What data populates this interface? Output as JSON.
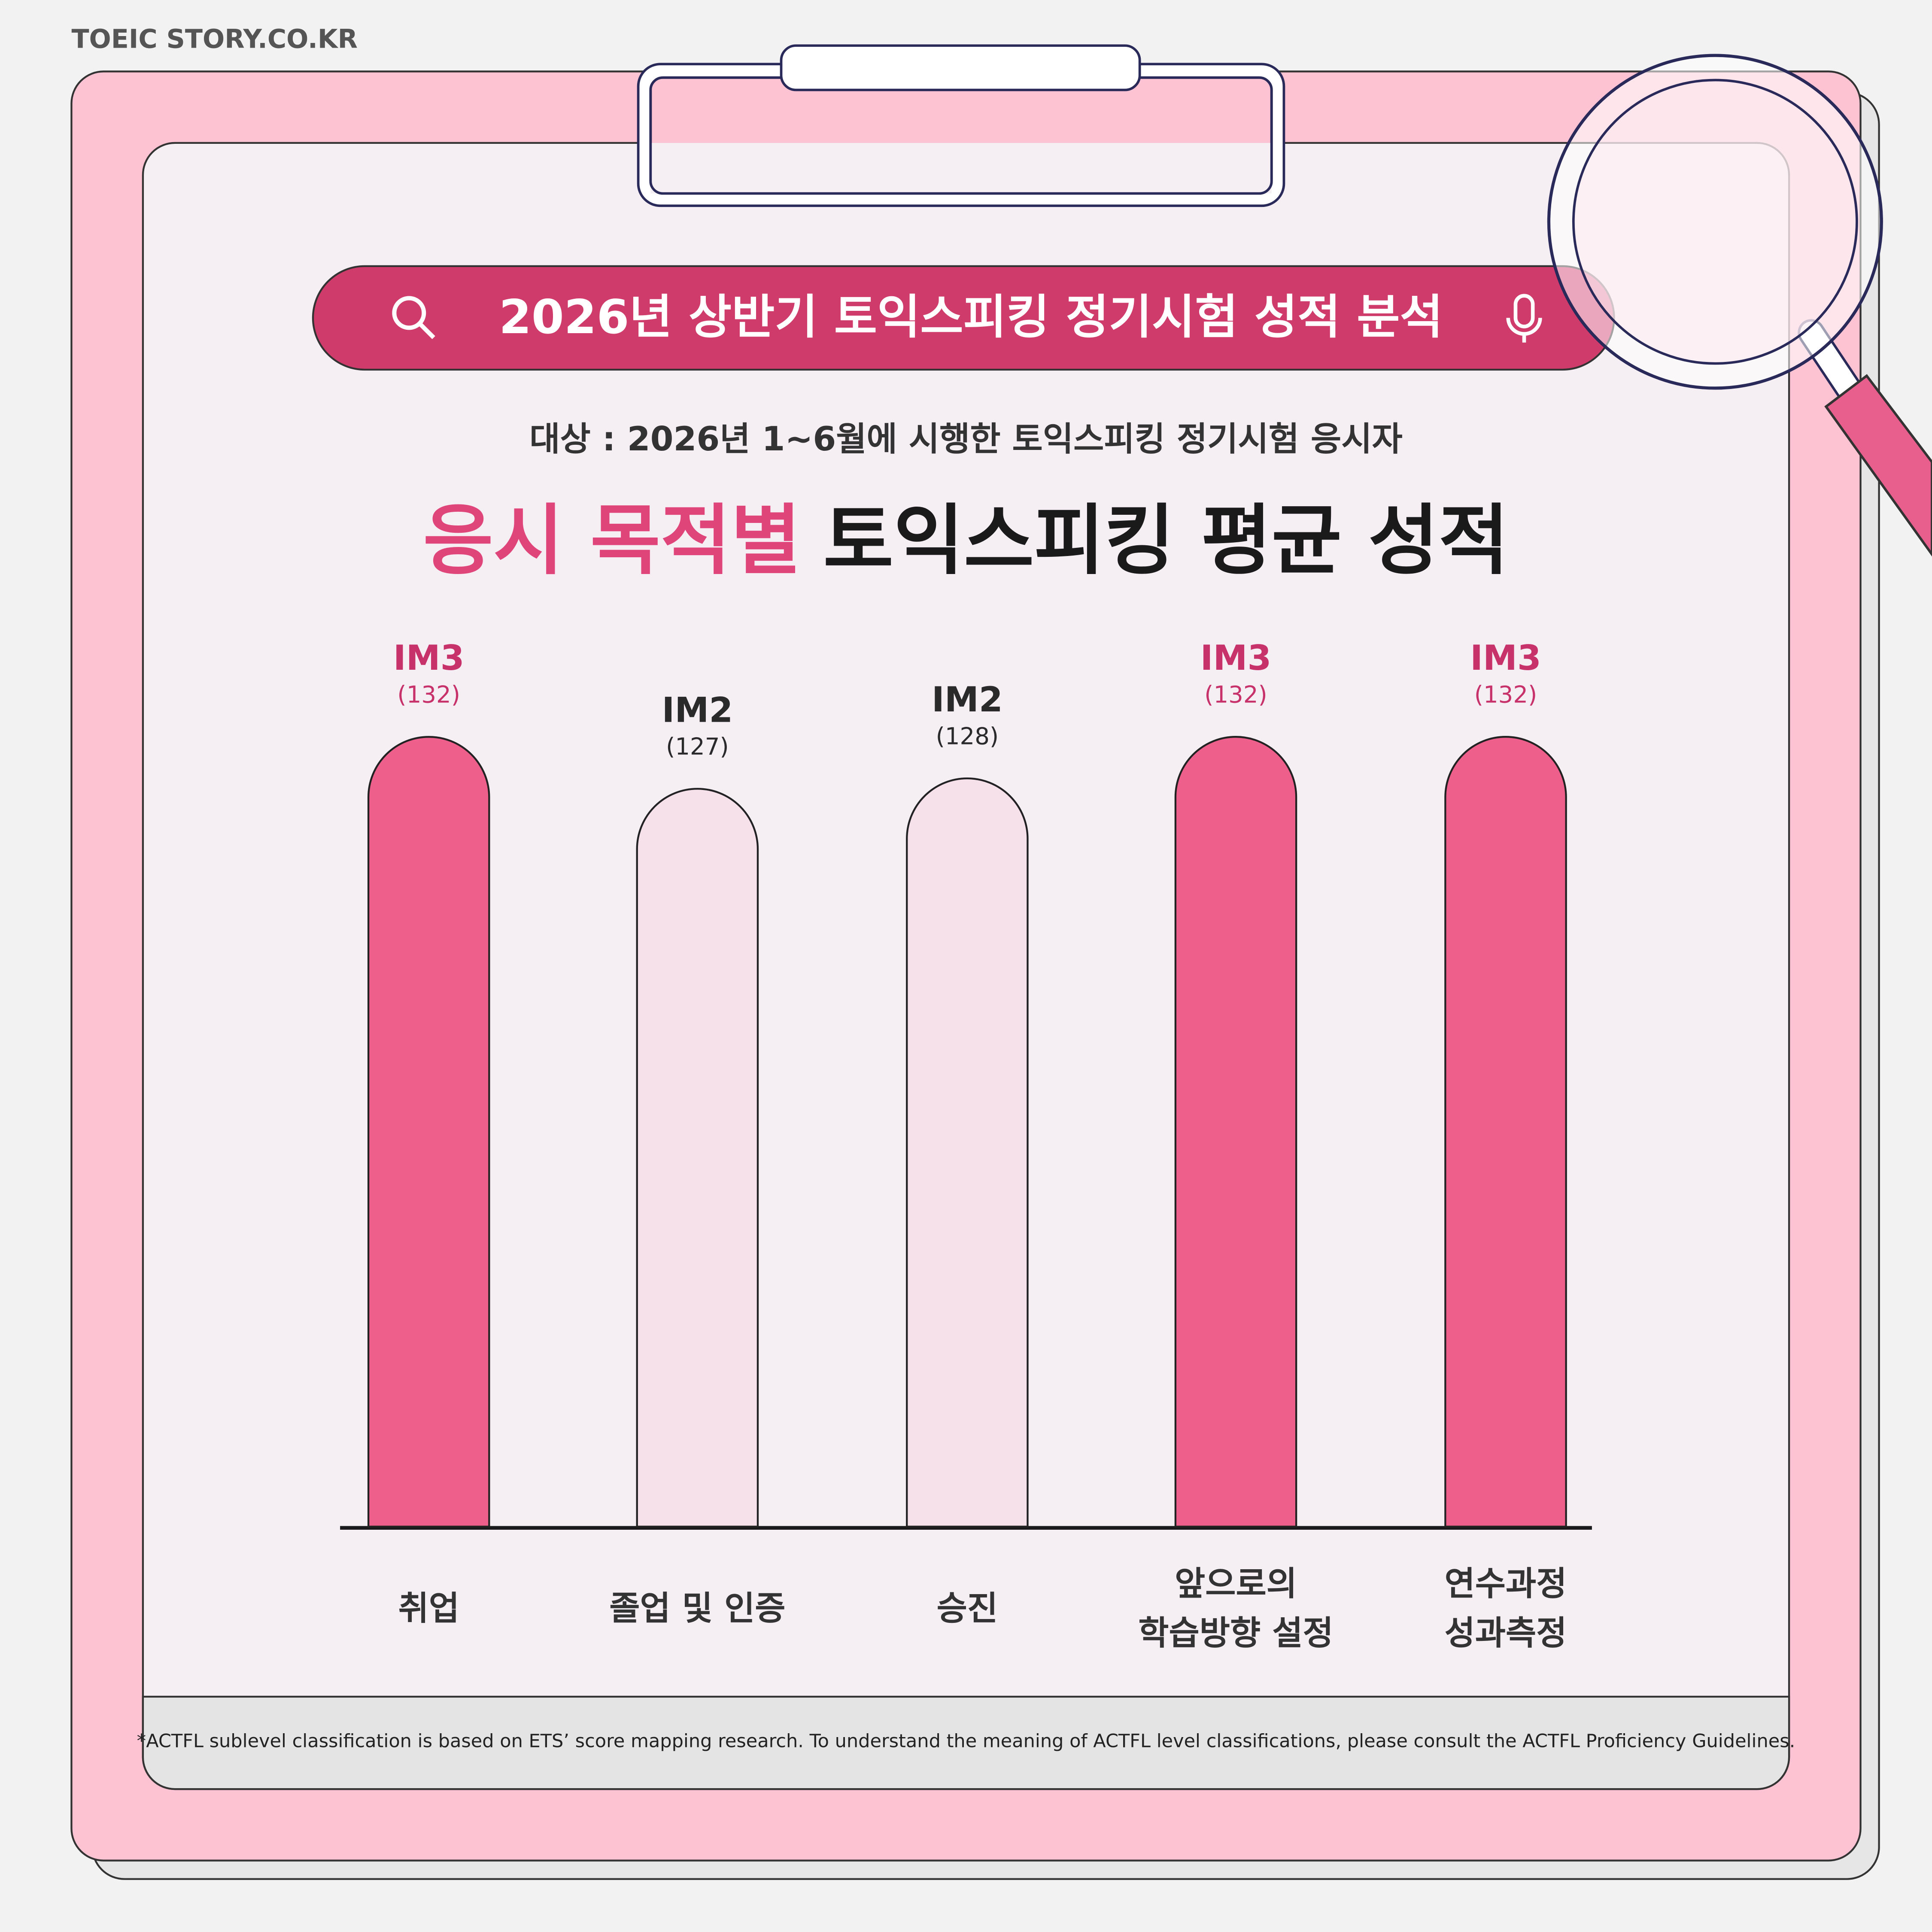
{
  "site": "TOEIC STORY.CO.KR",
  "header": {
    "search_title": "2026년 상반기 토익스피킹 정기시험 성적 분석",
    "subtitle": "대상 : 2026년 1~6월에 시행한 토익스피킹 정기시험 응시자"
  },
  "chart_data": {
    "type": "bar",
    "title_highlight": "응시 목적별",
    "title": "토익스피킹 평균 성적",
    "categories": [
      [
        "취업"
      ],
      [
        "졸업 및 인증"
      ],
      [
        "승진"
      ],
      [
        "앞으로의",
        "학습방향 설정"
      ],
      [
        "연수과정",
        "성과측정"
      ]
    ],
    "values": [
      132,
      127,
      128,
      132,
      132
    ],
    "value_labels": [
      "(132)",
      "(127)",
      "(128)",
      "(132)",
      "(132)"
    ],
    "levels": [
      "IM3",
      "IM2",
      "IM2",
      "IM3",
      "IM3"
    ],
    "colors": [
      "#ee5f8b",
      "#f6e0e9",
      "#f6e0e9",
      "#ee5f8b",
      "#ee5f8b"
    ],
    "label_colors": [
      "#c8326a",
      "#2a2a2a",
      "#2a2a2a",
      "#c8326a",
      "#c8326a"
    ],
    "ylim": [
      56,
      132
    ]
  },
  "footnote": "*ACTFL sublevel classification is based on ETS’ score mapping research. To understand the meaning of ACTFL level classifications, please consult the ACTFL Proficiency Guidelines."
}
